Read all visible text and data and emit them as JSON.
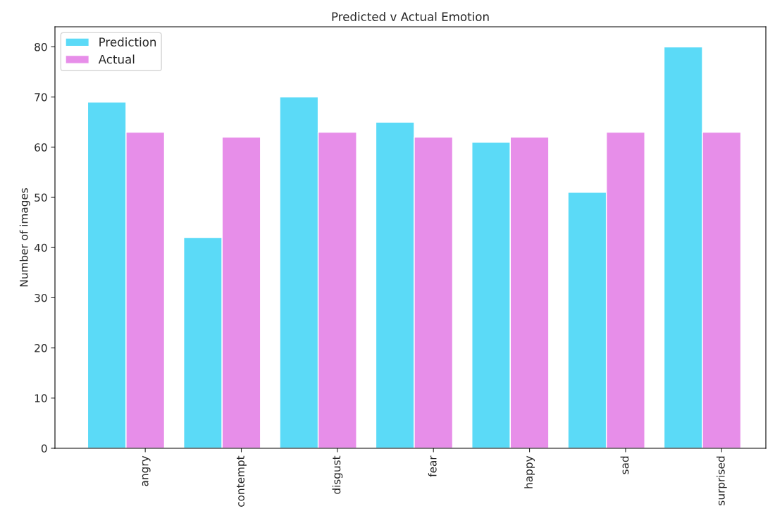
{
  "chart_data": {
    "type": "bar",
    "title": "Predicted v Actual Emotion",
    "ylabel": "Number of images",
    "categories": [
      "angry",
      "contempt",
      "disgust",
      "fear",
      "happy",
      "sad",
      "surprised"
    ],
    "series": [
      {
        "name": "Prediction",
        "color": "#5bdaf7",
        "values": [
          69,
          42,
          70,
          65,
          61,
          51,
          80
        ]
      },
      {
        "name": "Actual",
        "color": "#e78ee9",
        "values": [
          63,
          62,
          63,
          62,
          62,
          63,
          63
        ]
      }
    ],
    "ylim": [
      0,
      84
    ],
    "yticks": [
      0,
      10,
      20,
      30,
      40,
      50,
      60,
      70,
      80
    ],
    "grid": false,
    "legend": "top left"
  }
}
